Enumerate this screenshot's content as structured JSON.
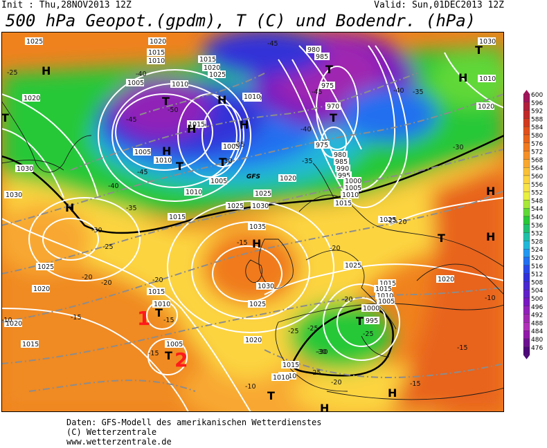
{
  "header": {
    "init": "Init : Thu,28NOV2013 12Z",
    "valid": "Valid: Sun,01DEC2013 12Z",
    "title": "500 hPa Geopot.(gpdm), T (C) und Bodendr. (hPa)"
  },
  "credits": {
    "line1": "Daten: GFS-Modell des amerikanischen Wetterdienstes",
    "line2": "(C) Wetterzentrale",
    "line3": "www.wetterzentrale.de"
  },
  "legend": {
    "values": [
      "600",
      "596",
      "592",
      "588",
      "584",
      "580",
      "576",
      "572",
      "568",
      "564",
      "560",
      "556",
      "552",
      "548",
      "544",
      "540",
      "536",
      "532",
      "528",
      "524",
      "520",
      "516",
      "512",
      "508",
      "504",
      "500",
      "496",
      "492",
      "488",
      "484",
      "480",
      "476"
    ],
    "colors": [
      "#a0145a",
      "#b01e3c",
      "#c02828",
      "#d03a1e",
      "#e0501a",
      "#e8641a",
      "#f07a1e",
      "#f49028",
      "#f8a830",
      "#fac038",
      "#fcd440",
      "#f8e448",
      "#e8f040",
      "#a8e838",
      "#60d838",
      "#28c838",
      "#20c070",
      "#20c0a8",
      "#20b8d8",
      "#2098f0",
      "#2070f0",
      "#2848e8",
      "#3030d8",
      "#4828d0",
      "#6020c8",
      "#7818c0",
      "#9020b8",
      "#a028b0",
      "#b030b8",
      "#9018a8",
      "#6c1090",
      "#4c0878"
    ]
  },
  "map": {
    "pressure_labels": [
      "1025",
      "1020",
      "1015",
      "1010",
      "1005",
      "1020",
      "1015",
      "1010",
      "1005",
      "980",
      "985",
      "975",
      "970",
      "975",
      "980",
      "985",
      "990",
      "995",
      "1000",
      "1005",
      "1010",
      "1015",
      "1010",
      "1005",
      "1025",
      "1030",
      "1035",
      "1030",
      "1025",
      "1020",
      "1015",
      "1010",
      "1005",
      "1010",
      "1015",
      "1020",
      "1025",
      "1030",
      "1035",
      "1025",
      "1020",
      "1015",
      "1025",
      "1030",
      "1010",
      "1015",
      "1010",
      "1005",
      "1000",
      "995",
      "1005",
      "1010",
      "1020",
      "1015",
      "1010",
      "1025",
      "1020",
      "1015",
      "1010",
      "1005",
      "1010",
      "1015",
      "1020",
      "1025",
      "1030",
      "1020"
    ],
    "temp_labels": [
      "-25",
      "-40",
      "-45",
      "-50",
      "-45",
      "-40",
      "-35",
      "-45",
      "-40",
      "-35",
      "-30",
      "-25",
      "-20",
      "-15",
      "-10",
      "-20",
      "-15",
      "-10",
      "-20",
      "-25",
      "-30",
      "-25",
      "-20",
      "-15",
      "-30",
      "-35",
      "-40",
      "-45",
      "-35",
      "-30",
      "-25",
      "-20",
      "-15",
      "-10",
      "-15",
      "-20",
      "-25",
      "-30",
      "-25",
      "-20",
      "-15"
    ],
    "gfs_label": "GFS",
    "markers": {
      "marker_1": "1",
      "marker_2": "2"
    },
    "high_symbol": "H",
    "low_symbol": "T"
  }
}
